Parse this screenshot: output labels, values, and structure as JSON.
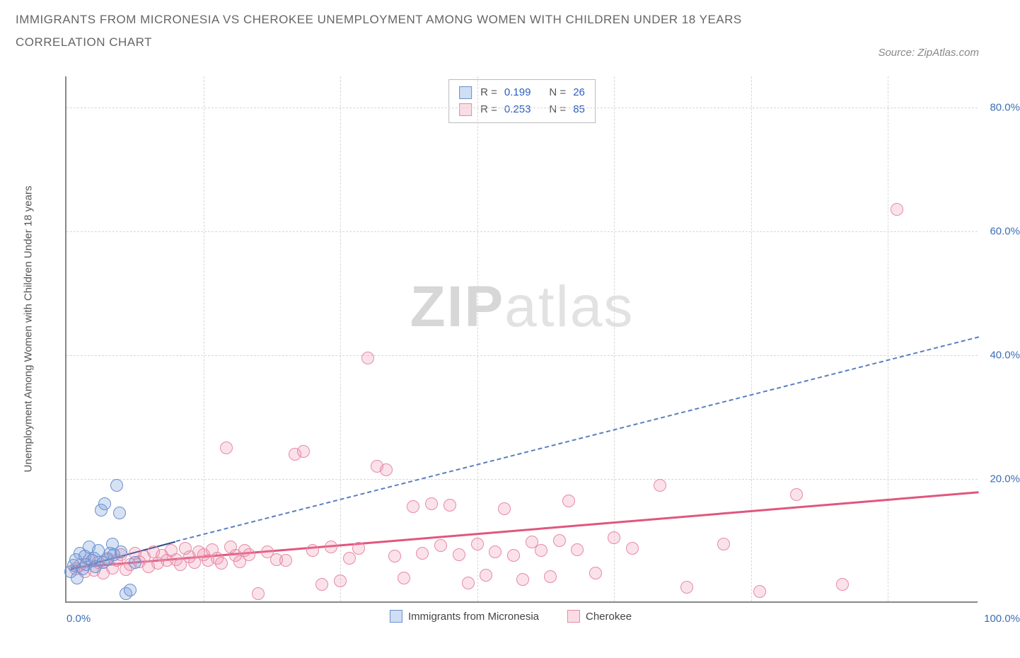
{
  "header": {
    "title": "IMMIGRANTS FROM MICRONESIA VS CHEROKEE UNEMPLOYMENT AMONG WOMEN WITH CHILDREN UNDER 18 YEARS",
    "subtitle": "CORRELATION CHART",
    "source": "Source: ZipAtlas.com"
  },
  "chart": {
    "type": "scatter",
    "y_axis_label": "Unemployment Among Women with Children Under 18 years",
    "xlim": [
      0,
      100
    ],
    "ylim": [
      0,
      85
    ],
    "x_ticks": [
      0,
      100
    ],
    "x_tick_labels": [
      "0.0%",
      "100.0%"
    ],
    "y_ticks": [
      20,
      40,
      60,
      80
    ],
    "y_tick_labels": [
      "20.0%",
      "40.0%",
      "60.0%",
      "80.0%"
    ],
    "x_minor_gridlines": [
      15,
      30,
      45,
      60,
      75,
      90
    ],
    "background_color": "#ffffff",
    "grid_color": "#d8d8d8",
    "axis_color": "#888888",
    "point_radius": 9,
    "series": [
      {
        "key": "a",
        "name": "Immigrants from Micronesia",
        "r": "0.199",
        "n": "26",
        "color_fill": "rgba(120,160,220,0.30)",
        "color_stroke": "#6a8fcf",
        "trend_solid": {
          "x1": 0.5,
          "y1": 5.5,
          "x2": 12,
          "y2": 10,
          "color": "#2a4a8f",
          "width": 2
        },
        "trend_dash": {
          "x1": 12,
          "y1": 10,
          "x2": 100,
          "y2": 43,
          "color": "#5a7fc0",
          "width": 2
        },
        "points": [
          [
            0.5,
            5
          ],
          [
            0.8,
            6
          ],
          [
            1,
            7
          ],
          [
            1.2,
            4
          ],
          [
            1.5,
            8
          ],
          [
            1.8,
            5.5
          ],
          [
            2,
            7.5
          ],
          [
            2.2,
            6.2
          ],
          [
            2.5,
            9
          ],
          [
            2.8,
            6.8
          ],
          [
            3,
            7.2
          ],
          [
            3.2,
            5.8
          ],
          [
            3.5,
            8.5
          ],
          [
            3.8,
            15
          ],
          [
            4,
            6.5
          ],
          [
            4.2,
            16
          ],
          [
            4.5,
            7
          ],
          [
            4.8,
            8
          ],
          [
            5,
            9.5
          ],
          [
            5.2,
            7.8
          ],
          [
            5.5,
            19
          ],
          [
            5.8,
            14.5
          ],
          [
            6,
            8.2
          ],
          [
            6.5,
            1.5
          ],
          [
            7,
            2
          ],
          [
            7.5,
            6.5
          ]
        ]
      },
      {
        "key": "b",
        "name": "Cherokee",
        "r": "0.253",
        "n": "85",
        "color_fill": "rgba(240,140,170,0.25)",
        "color_stroke": "#e58aa6",
        "trend_solid": {
          "x1": 0.5,
          "y1": 5.8,
          "x2": 100,
          "y2": 18,
          "color": "#e0567e",
          "width": 3
        },
        "points": [
          [
            1,
            5.5
          ],
          [
            1.5,
            6
          ],
          [
            2,
            5
          ],
          [
            2.5,
            7
          ],
          [
            3,
            5.2
          ],
          [
            3.5,
            6.5
          ],
          [
            4,
            4.8
          ],
          [
            4.5,
            7.2
          ],
          [
            5,
            5.6
          ],
          [
            5.5,
            6.8
          ],
          [
            6,
            7.8
          ],
          [
            6.5,
            5.4
          ],
          [
            7,
            6.2
          ],
          [
            7.5,
            8
          ],
          [
            8,
            6.6
          ],
          [
            8.5,
            7.4
          ],
          [
            9,
            5.8
          ],
          [
            9.5,
            8.2
          ],
          [
            10,
            6.4
          ],
          [
            10.5,
            7.6
          ],
          [
            11,
            6.8
          ],
          [
            11.5,
            8.5
          ],
          [
            12,
            7
          ],
          [
            12.5,
            6.2
          ],
          [
            13,
            8.8
          ],
          [
            13.5,
            7.4
          ],
          [
            14,
            6.5
          ],
          [
            14.5,
            8.2
          ],
          [
            15,
            7.8
          ],
          [
            15.5,
            6.8
          ],
          [
            16,
            8.6
          ],
          [
            16.5,
            7.2
          ],
          [
            17,
            6.4
          ],
          [
            17.5,
            25
          ],
          [
            18,
            9
          ],
          [
            18.5,
            7.6
          ],
          [
            19,
            6.6
          ],
          [
            19.5,
            8.4
          ],
          [
            20,
            7.8
          ],
          [
            21,
            1.5
          ],
          [
            22,
            8.2
          ],
          [
            23,
            7
          ],
          [
            24,
            6.8
          ],
          [
            25,
            24
          ],
          [
            26,
            24.5
          ],
          [
            27,
            8.5
          ],
          [
            28,
            3
          ],
          [
            29,
            9
          ],
          [
            30,
            3.5
          ],
          [
            31,
            7.2
          ],
          [
            32,
            8.8
          ],
          [
            33,
            39.5
          ],
          [
            34,
            22
          ],
          [
            35,
            21.5
          ],
          [
            36,
            7.5
          ],
          [
            37,
            4
          ],
          [
            38,
            15.5
          ],
          [
            39,
            8
          ],
          [
            40,
            16
          ],
          [
            41,
            9.2
          ],
          [
            42,
            15.8
          ],
          [
            43,
            7.8
          ],
          [
            44,
            3.2
          ],
          [
            45,
            9.5
          ],
          [
            46,
            4.5
          ],
          [
            47,
            8.2
          ],
          [
            48,
            15.2
          ],
          [
            49,
            7.6
          ],
          [
            50,
            3.8
          ],
          [
            51,
            9.8
          ],
          [
            52,
            8.4
          ],
          [
            53,
            4.2
          ],
          [
            54,
            10
          ],
          [
            55,
            16.5
          ],
          [
            56,
            8.6
          ],
          [
            58,
            4.8
          ],
          [
            60,
            10.5
          ],
          [
            62,
            8.8
          ],
          [
            65,
            19
          ],
          [
            68,
            2.5
          ],
          [
            72,
            9.5
          ],
          [
            76,
            1.8
          ],
          [
            80,
            17.5
          ],
          [
            85,
            3
          ],
          [
            91,
            63.5
          ]
        ]
      }
    ],
    "legend_top": {
      "r_label": "R =",
      "n_label": "N ="
    },
    "watermark": {
      "part1": "ZIP",
      "part2": "atlas"
    },
    "legend_bottom_labels": [
      "Immigrants from Micronesia",
      "Cherokee"
    ],
    "y_tick_color": "#3b6fb6",
    "label_fontsize": 15,
    "title_fontsize": 17
  }
}
